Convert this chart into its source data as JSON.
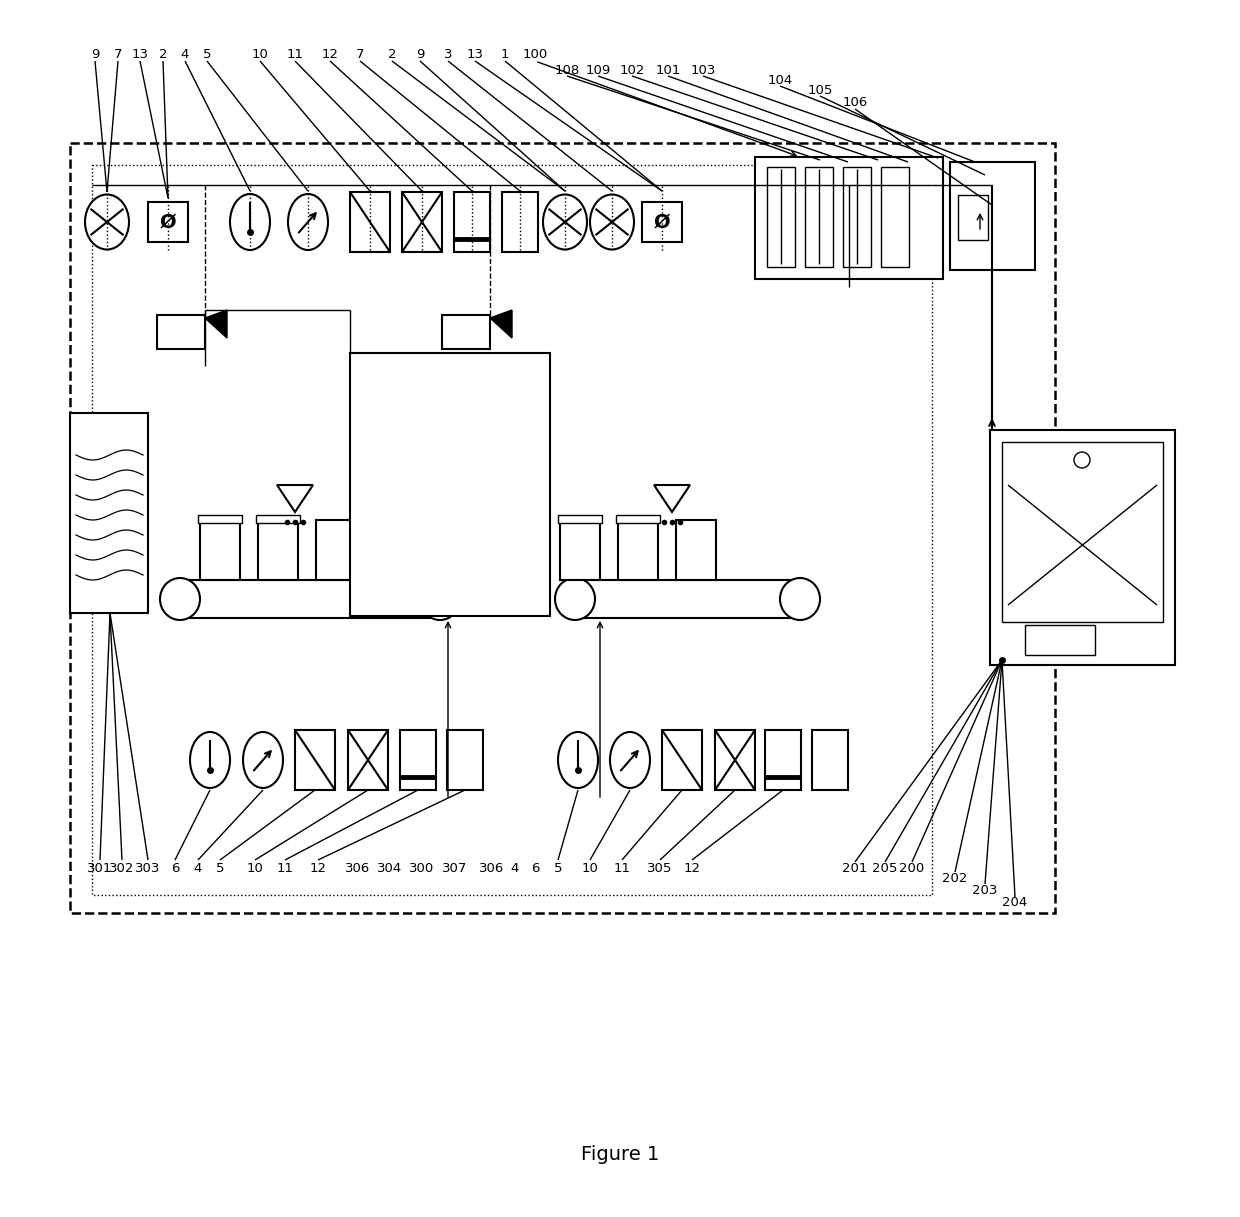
{
  "fig_width": 12.4,
  "fig_height": 12.17,
  "dpi": 100,
  "title": "Figure 1",
  "bg": "#ffffff"
}
